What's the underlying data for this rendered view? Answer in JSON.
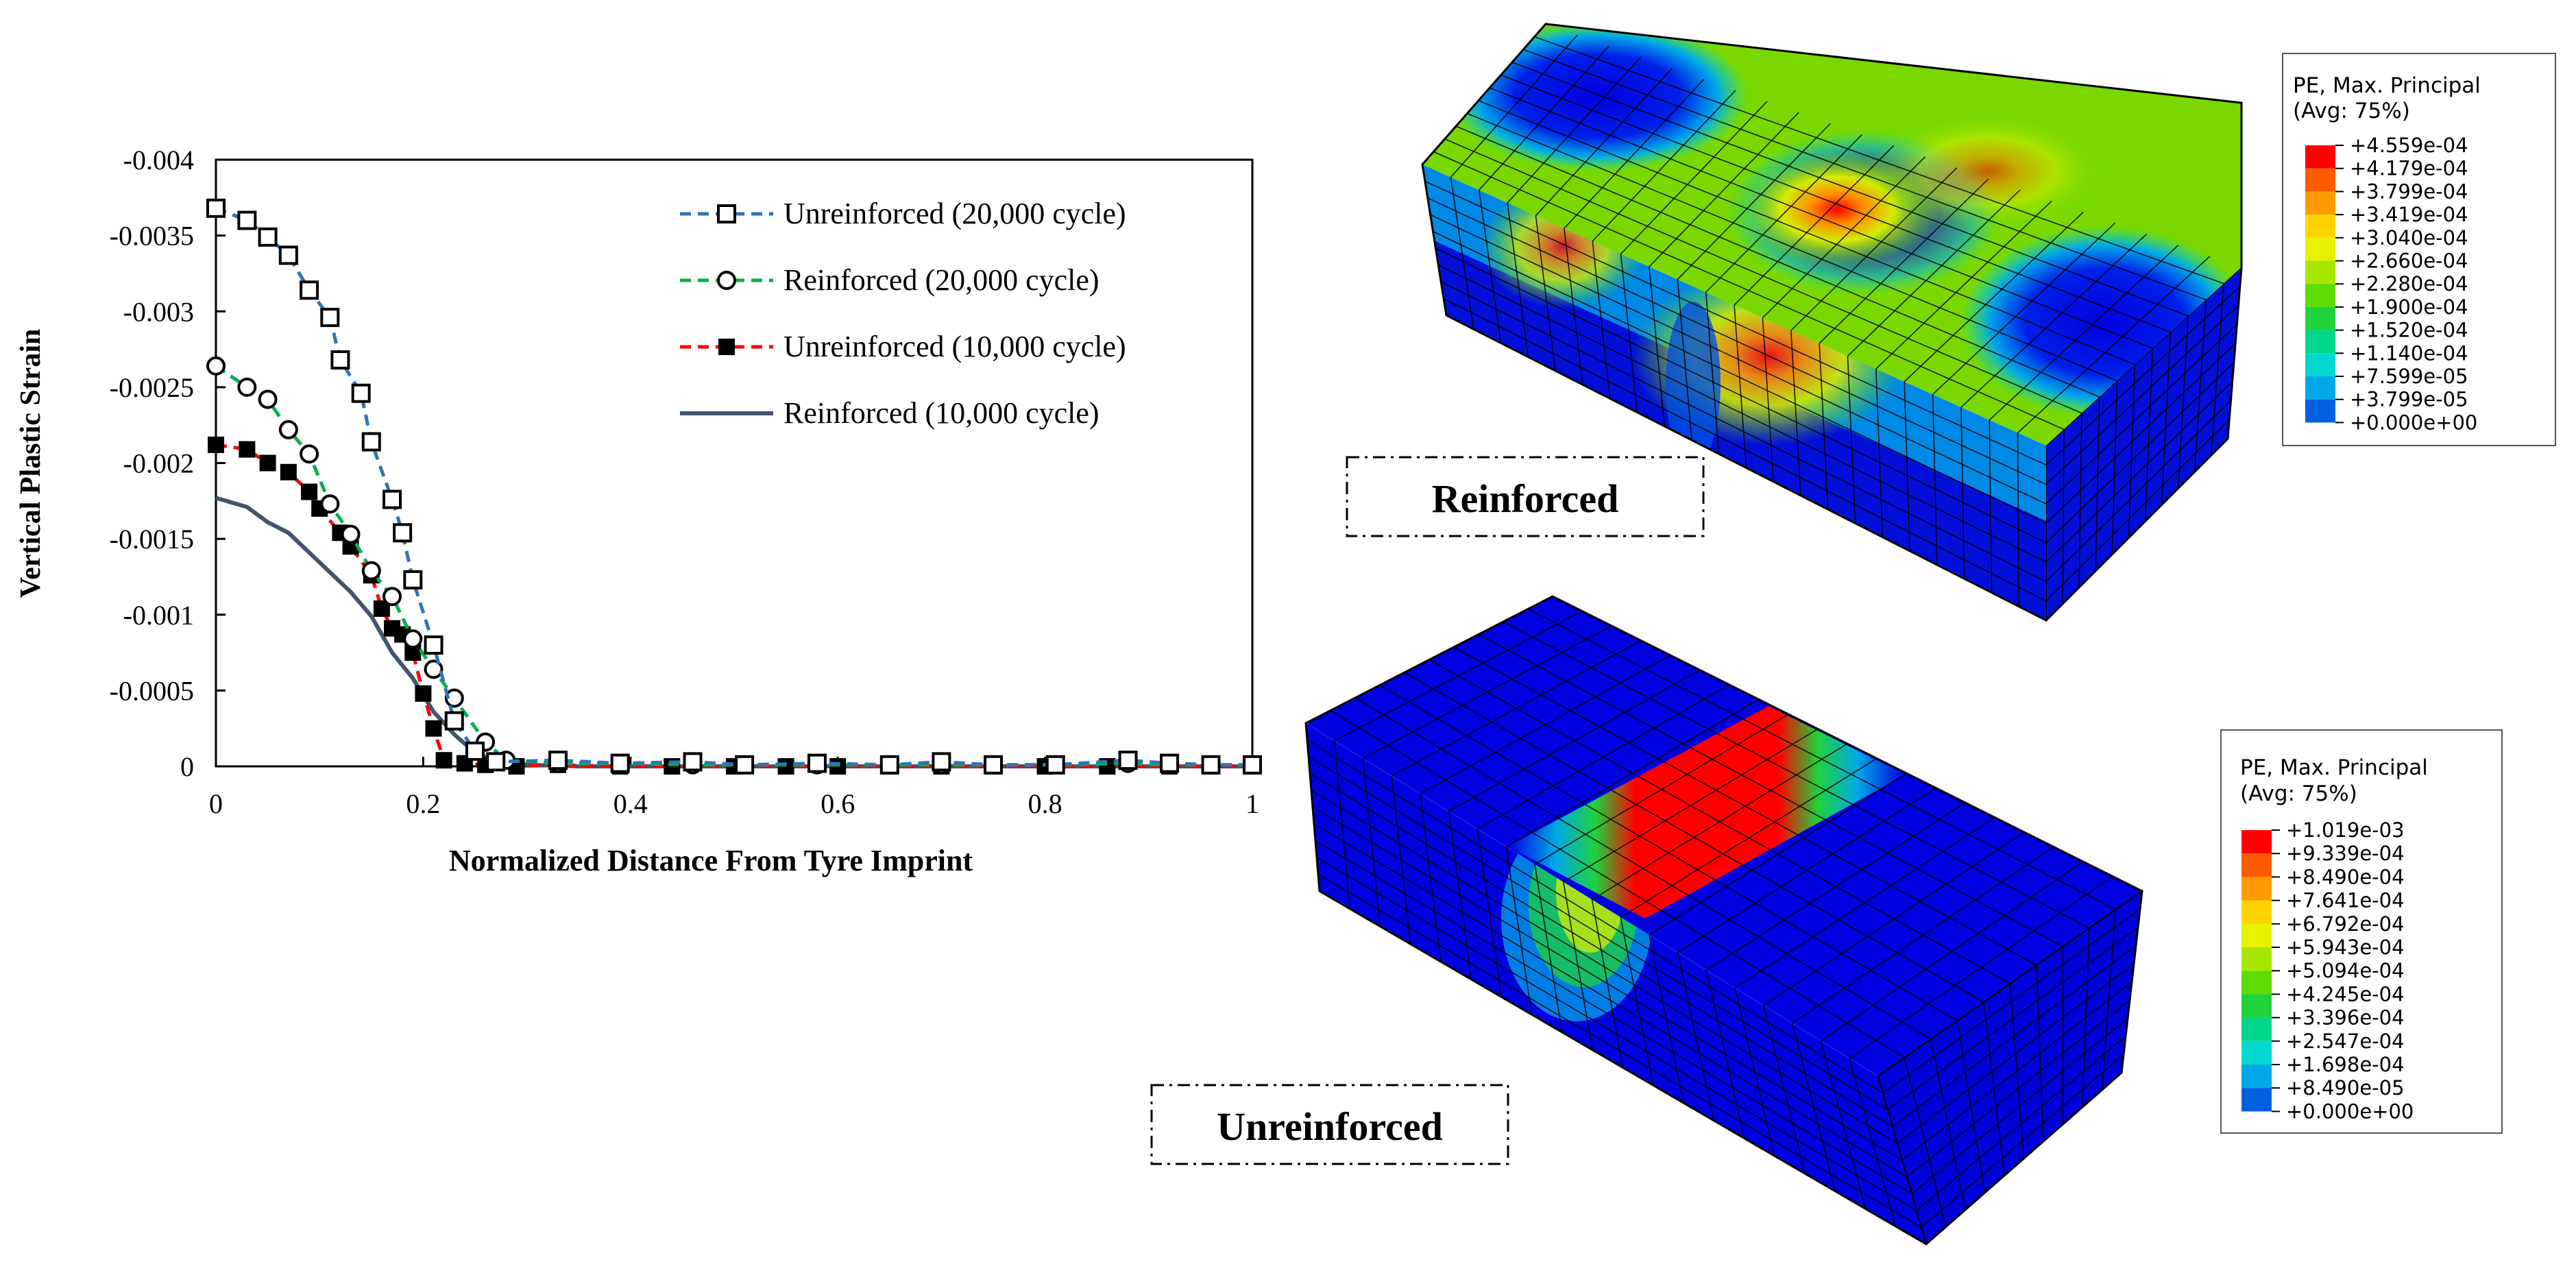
{
  "chart_data": {
    "type": "line",
    "title": "",
    "xlabel": "Normalized Distance From Tyre Imprint",
    "ylabel": "Vertical Plastic Strain",
    "xlim": [
      0,
      1
    ],
    "ylim": [
      0,
      -0.004
    ],
    "x_ticks": [
      "0",
      "0.2",
      "0.4",
      "0.6",
      "0.8",
      "1"
    ],
    "y_ticks": [
      "-0.004",
      "-0.0035",
      "-0.003",
      "-0.0025",
      "-0.002",
      "-0.0015",
      "-0.001",
      "-0.0005",
      "0"
    ],
    "grid": false,
    "legend_position": "top-right",
    "series": [
      {
        "name": "Unreinforced (20,000 cycle)",
        "color": "#2e75b6",
        "line": "dashed",
        "marker": "open-square",
        "x": [
          0,
          0.03,
          0.05,
          0.07,
          0.09,
          0.11,
          0.12,
          0.14,
          0.15,
          0.17,
          0.18,
          0.19,
          0.21,
          0.23,
          0.25,
          0.27,
          0.33,
          0.39,
          0.46,
          0.51,
          0.58,
          0.65,
          0.7,
          0.75,
          0.81,
          0.88,
          0.92,
          0.96,
          1.0
        ],
        "y": [
          -0.00368,
          -0.0036,
          -0.00349,
          -0.00337,
          -0.00314,
          -0.00296,
          -0.00268,
          -0.00246,
          -0.00214,
          -0.00176,
          -0.00154,
          -0.00123,
          -0.0008,
          -0.0003,
          -0.0001,
          -3e-05,
          -4e-05,
          -2e-05,
          -3e-05,
          -1e-05,
          -2e-05,
          -1e-05,
          -3e-05,
          -1e-05,
          -1e-05,
          -4e-05,
          -2e-05,
          -1e-05,
          -1e-05
        ]
      },
      {
        "name": "Reinforced (20,000 cycle)",
        "color": "#00b050",
        "line": "dashed",
        "marker": "open-circle",
        "x": [
          0,
          0.03,
          0.05,
          0.07,
          0.09,
          0.11,
          0.13,
          0.15,
          0.17,
          0.19,
          0.21,
          0.23,
          0.26,
          0.28,
          0.33,
          0.39,
          0.46,
          0.51,
          0.58,
          0.65,
          0.7,
          0.75,
          0.81,
          0.88,
          0.92,
          0.96,
          1.0
        ],
        "y": [
          -0.00264,
          -0.0025,
          -0.00242,
          -0.00222,
          -0.00206,
          -0.00173,
          -0.00153,
          -0.00129,
          -0.00112,
          -0.00084,
          -0.00064,
          -0.00045,
          -0.00016,
          -4e-05,
          -2e-05,
          -2e-05,
          -1e-05,
          -1e-05,
          -1e-05,
          -1e-05,
          -1e-05,
          -1e-05,
          -1e-05,
          -2e-05,
          -1e-05,
          -1e-05,
          -1e-05
        ]
      },
      {
        "name": "Unreinforced (10,000 cycle)",
        "color": "#ff0000",
        "line": "dashed",
        "marker": "filled-square",
        "x": [
          0,
          0.03,
          0.05,
          0.07,
          0.09,
          0.1,
          0.12,
          0.13,
          0.15,
          0.16,
          0.17,
          0.18,
          0.19,
          0.2,
          0.21,
          0.22,
          0.24,
          0.26,
          0.29,
          0.33,
          0.39,
          0.44,
          0.5,
          0.55,
          0.6,
          0.65,
          0.7,
          0.75,
          0.8,
          0.86,
          0.92,
          0.96,
          1.0
        ],
        "y": [
          -0.00212,
          -0.00209,
          -0.002,
          -0.00194,
          -0.00181,
          -0.0017,
          -0.00154,
          -0.00145,
          -0.00126,
          -0.00104,
          -0.00091,
          -0.00087,
          -0.00075,
          -0.00048,
          -0.00025,
          -4e-05,
          -2e-05,
          -1e-05,
          0,
          -1e-05,
          0,
          0,
          0,
          0,
          0,
          0,
          0,
          0,
          0,
          0,
          0,
          0,
          0
        ]
      },
      {
        "name": "Reinforced (10,000 cycle)",
        "color": "#44546a",
        "line": "solid",
        "marker": "none",
        "x": [
          0,
          0.03,
          0.05,
          0.07,
          0.09,
          0.11,
          0.13,
          0.15,
          0.17,
          0.19,
          0.21,
          0.23,
          0.25,
          0.27,
          0.3,
          0.35,
          0.4,
          0.5,
          0.6,
          0.7,
          0.8,
          0.9,
          1.0
        ],
        "y": [
          -0.00177,
          -0.00171,
          -0.00161,
          -0.00154,
          -0.00141,
          -0.00128,
          -0.00115,
          -0.00099,
          -0.00075,
          -0.00058,
          -0.00036,
          -0.00021,
          -9e-05,
          -3e-05,
          -1e-05,
          0,
          0,
          0,
          0,
          0,
          0,
          0,
          0
        ]
      }
    ]
  },
  "fem": {
    "reinforced_label": "Reinforced",
    "unreinforced_label": "Unreinforced",
    "reinforced_legend": {
      "title_line1": "PE, Max. Principal",
      "title_line2": "(Avg: 75%)",
      "values": [
        "+4.559e-04",
        "+4.179e-04",
        "+3.799e-04",
        "+3.419e-04",
        "+3.040e-04",
        "+2.660e-04",
        "+2.280e-04",
        "+1.900e-04",
        "+1.520e-04",
        "+1.140e-04",
        "+7.599e-05",
        "+3.799e-05",
        "+0.000e+00"
      ]
    },
    "unreinforced_legend": {
      "title_line1": "PE, Max. Principal",
      "title_line2": "(Avg: 75%)",
      "values": [
        "+1.019e-03",
        "+9.339e-04",
        "+8.490e-04",
        "+7.641e-04",
        "+6.792e-04",
        "+5.943e-04",
        "+5.094e-04",
        "+4.245e-04",
        "+3.396e-04",
        "+2.547e-04",
        "+1.698e-04",
        "+8.490e-05",
        "+0.000e+00"
      ]
    },
    "colormap": [
      "#ff0000",
      "#ff5a00",
      "#ff9a00",
      "#ffd200",
      "#e6f000",
      "#a6e600",
      "#5fdc00",
      "#1fd23c",
      "#00d68c",
      "#00d8d0",
      "#00a8e8",
      "#0060e0",
      "#0000e0"
    ]
  }
}
